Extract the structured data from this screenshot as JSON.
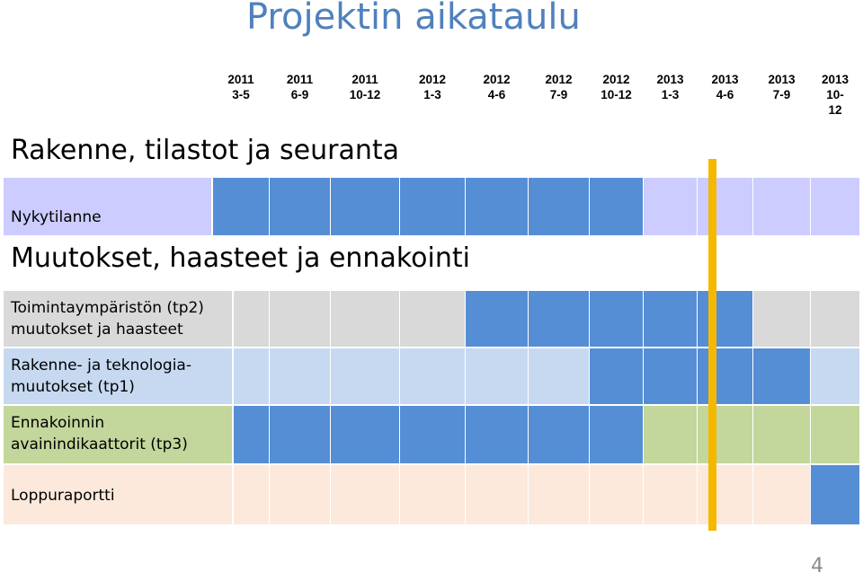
{
  "title": "Projektin aikataulu",
  "periods": [
    {
      "year": "2011",
      "months": "3-5"
    },
    {
      "year": "2011",
      "months": "6-9"
    },
    {
      "year": "2011",
      "months": "10-12"
    },
    {
      "year": "2012",
      "months": "1-3"
    },
    {
      "year": "2012",
      "months": "4-6"
    },
    {
      "year": "2012",
      "months": "7-9"
    },
    {
      "year": "2012",
      "months": "10-12"
    },
    {
      "year": "2013",
      "months": "1-3"
    },
    {
      "year": "2013",
      "months": "4-6"
    },
    {
      "year": "2013",
      "months": "7-9"
    },
    {
      "year": "2013",
      "months": "10-\n12"
    }
  ],
  "sections": {
    "first": "Rakenne, tilastot ja seuranta",
    "second": "Muutokset, haasteet ja ennakointi"
  },
  "rows": [
    {
      "id": "nykytilanne",
      "label": "Nykytilanne",
      "base_color": "#ccccff",
      "active_color": "#558ed5",
      "active": [
        0,
        1,
        2,
        3,
        4,
        5,
        6
      ]
    },
    {
      "id": "toimintaymparisto",
      "label": "Toimintaympäristön (tp2)\nmuutokset ja haasteet",
      "base_color": "#d9d9d9",
      "active_color": "#558ed5",
      "active": [
        4,
        5,
        6,
        7,
        8
      ]
    },
    {
      "id": "rakenne",
      "label": "Rakenne- ja teknologia-\nmuutokset (tp1)",
      "base_color": "#c6d9f1",
      "active_color": "#558ed5",
      "active": [
        6,
        7,
        8,
        9
      ]
    },
    {
      "id": "ennakointi",
      "label": "Ennakoinnin\navainindikaattorit (tp3)",
      "base_color": "#c3d69b",
      "active_color": "#558ed5",
      "active": [
        0,
        1,
        2,
        3,
        4,
        5,
        6
      ]
    },
    {
      "id": "loppuraportti",
      "label": "Loppuraportti",
      "base_color": "#fce9db",
      "active_color": "#558ed5",
      "active": [
        10
      ]
    }
  ],
  "current_marker": {
    "color": "#f5b800",
    "after_period": "2013 1-3"
  },
  "page_number": "4"
}
